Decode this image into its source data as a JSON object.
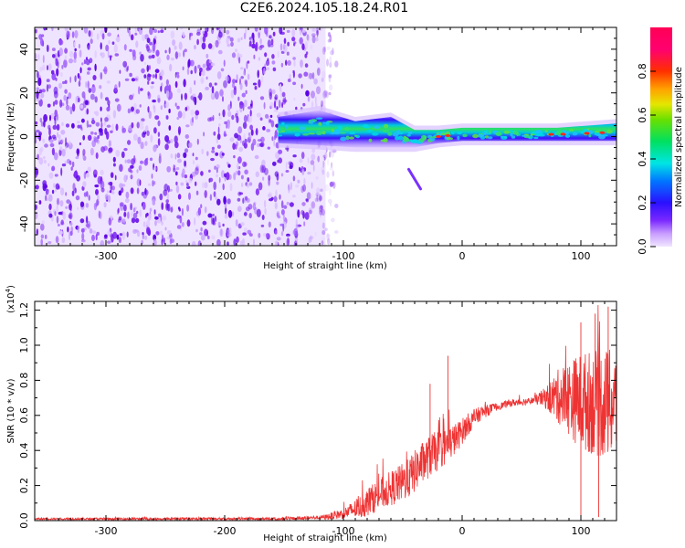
{
  "title": "C2E6.2024.105.18.24.R01",
  "colors": {
    "spectrogram_low": "#d9b8ff",
    "spectrogram_mid": "#5a00e6",
    "snr_line": "#ee3333",
    "axes": "#000000"
  },
  "chart_data": [
    {
      "type": "heatmap",
      "xlabel": "Height of straight line (km)",
      "ylabel": "Frequency (Hz)",
      "xlim": [
        -360,
        130
      ],
      "ylim": [
        -50,
        50
      ],
      "x_ticks": [
        -300,
        -200,
        -100,
        0,
        100
      ],
      "y_ticks": [
        -40,
        -20,
        0,
        20,
        40
      ],
      "noise_region_x": [
        -360,
        -115
      ],
      "signal_start_x": -155,
      "signal_band": [
        {
          "x": -155,
          "center": 3,
          "half_width": 6
        },
        {
          "x": -120,
          "center": 4,
          "half_width": 8
        },
        {
          "x": -90,
          "center": 1,
          "half_width": 6
        },
        {
          "x": -60,
          "center": 2,
          "half_width": 7
        },
        {
          "x": -40,
          "center": -1,
          "half_width": 4
        },
        {
          "x": -20,
          "center": 0,
          "half_width": 3
        },
        {
          "x": 0,
          "center": 1,
          "half_width": 3
        },
        {
          "x": 40,
          "center": 1,
          "half_width": 3
        },
        {
          "x": 80,
          "center": 1,
          "half_width": 3
        },
        {
          "x": 130,
          "center": 2,
          "half_width": 4
        }
      ],
      "branch": [
        {
          "x": -45,
          "y": -15
        },
        {
          "x": -35,
          "y": -24
        }
      ],
      "colorbar": {
        "label": "Normalized spectral amplitude",
        "range": [
          0,
          1
        ],
        "ticks": [
          "0.0",
          "0.2",
          "0.4",
          "0.6",
          "0.8"
        ]
      }
    },
    {
      "type": "line",
      "xlabel": "Height of straight line (km)",
      "ylabel": "SNR (10 * v/v)",
      "y_multiplier": "(x10",
      "y_multiplier_exp": "4",
      "xlim": [
        -360,
        130
      ],
      "ylim": [
        0,
        1.25
      ],
      "x_ticks": [
        -300,
        -200,
        -100,
        0,
        100
      ],
      "y_ticks": [
        "0.0",
        "0.2",
        "0.4",
        "0.6",
        "0.8",
        "1.0",
        "1.2"
      ],
      "series": [
        {
          "color": "#ee3333",
          "points": [
            [
              -360,
              0.01
            ],
            [
              -250,
              0.01
            ],
            [
              -150,
              0.01
            ],
            [
              -115,
              0.02
            ],
            [
              -100,
              0.04
            ],
            [
              -85,
              0.08
            ],
            [
              -70,
              0.15
            ],
            [
              -55,
              0.2
            ],
            [
              -45,
              0.24
            ],
            [
              -35,
              0.32
            ],
            [
              -25,
              0.38
            ],
            [
              -15,
              0.42
            ],
            [
              -5,
              0.47
            ],
            [
              5,
              0.55
            ],
            [
              15,
              0.61
            ],
            [
              25,
              0.64
            ],
            [
              40,
              0.67
            ],
            [
              55,
              0.68
            ],
            [
              70,
              0.7
            ],
            [
              85,
              0.71
            ],
            [
              100,
              0.68
            ],
            [
              115,
              0.67
            ],
            [
              130,
              0.66
            ]
          ],
          "noise_amplitude": [
            [
              -360,
              0.005
            ],
            [
              -120,
              0.01
            ],
            [
              -100,
              0.03
            ],
            [
              -80,
              0.08
            ],
            [
              -60,
              0.1
            ],
            [
              -40,
              0.12
            ],
            [
              -25,
              0.12
            ],
            [
              -10,
              0.1
            ],
            [
              10,
              0.05
            ],
            [
              30,
              0.02
            ],
            [
              60,
              0.02
            ],
            [
              70,
              0.06
            ],
            [
              80,
              0.15
            ],
            [
              100,
              0.28
            ],
            [
              120,
              0.32
            ],
            [
              130,
              0.3
            ]
          ],
          "spikes": [
            {
              "x": -27,
              "y": 0.78
            },
            {
              "x": -12,
              "y": 0.94
            },
            {
              "x": 100,
              "y": 1.13
            },
            {
              "x": 112,
              "y": 1.18
            },
            {
              "x": 123,
              "y": 1.22
            },
            {
              "x": 100,
              "y": 0.0
            },
            {
              "x": 115,
              "y": 0.02
            }
          ]
        }
      ]
    }
  ]
}
